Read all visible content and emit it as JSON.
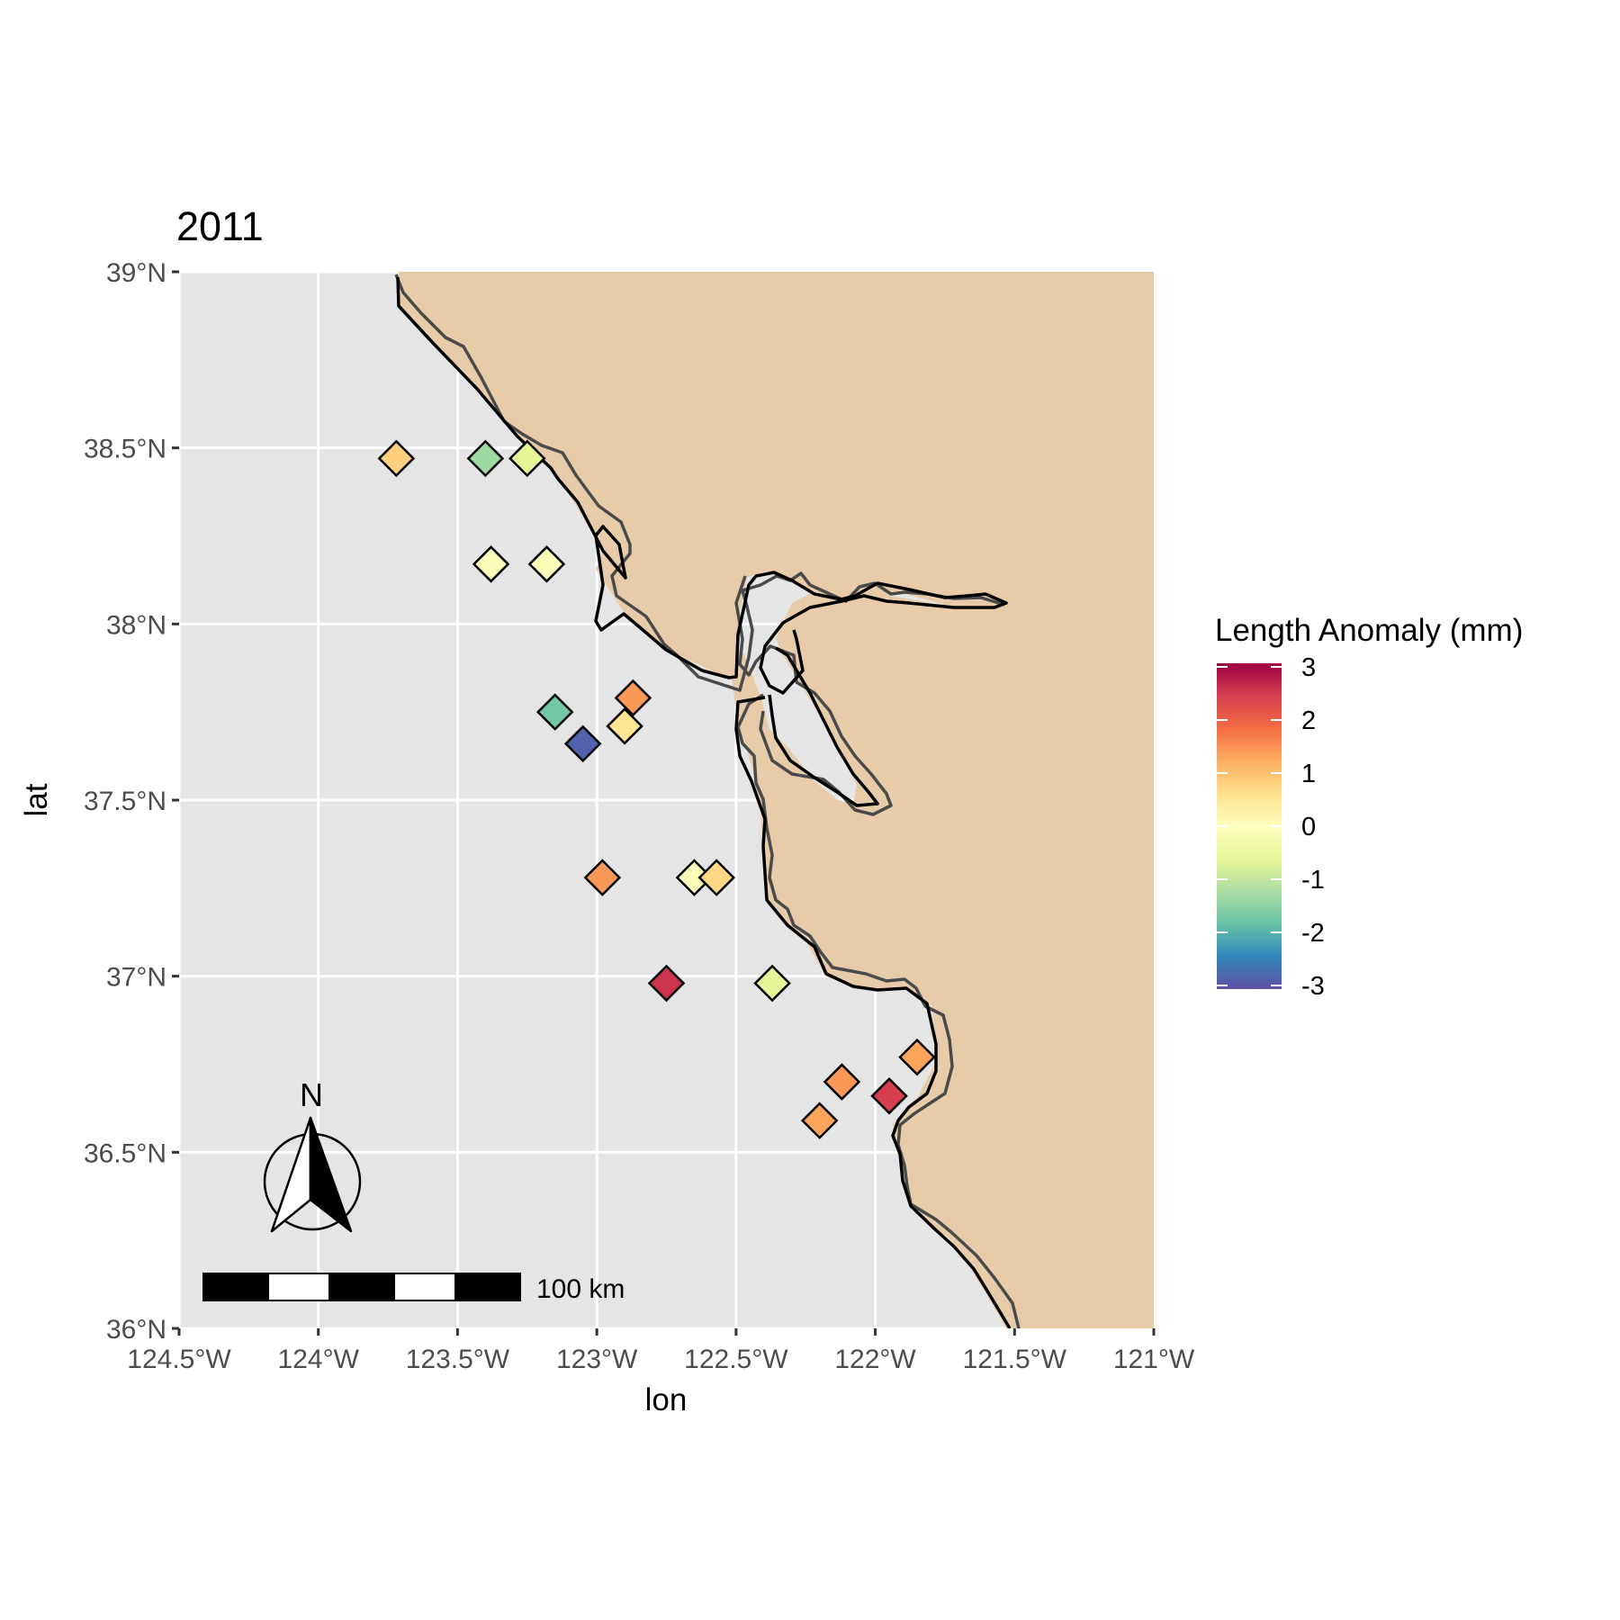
{
  "chart_data": {
    "type": "scatter",
    "title": "2011",
    "xlabel": "lon",
    "ylabel": "lat",
    "xlim": [
      -124.5,
      -121.0
    ],
    "ylim": [
      36.0,
      39.0
    ],
    "x_ticks": [
      {
        "value": -124.5,
        "label": "124.5°W"
      },
      {
        "value": -124.0,
        "label": "124°W"
      },
      {
        "value": -123.5,
        "label": "123.5°W"
      },
      {
        "value": -123.0,
        "label": "123°W"
      },
      {
        "value": -122.5,
        "label": "122.5°W"
      },
      {
        "value": -122.0,
        "label": "122°W"
      },
      {
        "value": -121.5,
        "label": "121.5°W"
      },
      {
        "value": -121.0,
        "label": "121°W"
      }
    ],
    "y_ticks": [
      {
        "value": 36.0,
        "label": "36°N"
      },
      {
        "value": 36.5,
        "label": "36.5°N"
      },
      {
        "value": 37.0,
        "label": "37°N"
      },
      {
        "value": 37.5,
        "label": "37.5°N"
      },
      {
        "value": 38.0,
        "label": "38°N"
      },
      {
        "value": 38.5,
        "label": "38.5°N"
      },
      {
        "value": 39.0,
        "label": "39°N"
      }
    ],
    "grid": true,
    "marker": "diamond",
    "points": [
      {
        "lon": -123.72,
        "lat": 38.47,
        "value": 0.8
      },
      {
        "lon": -123.4,
        "lat": 38.47,
        "value": -1.3
      },
      {
        "lon": -123.25,
        "lat": 38.47,
        "value": -0.6
      },
      {
        "lon": -123.38,
        "lat": 38.17,
        "value": -0.1
      },
      {
        "lon": -123.18,
        "lat": 38.17,
        "value": -0.1
      },
      {
        "lon": -123.15,
        "lat": 37.75,
        "value": -1.7
      },
      {
        "lon": -123.05,
        "lat": 37.66,
        "value": -2.8
      },
      {
        "lon": -122.9,
        "lat": 37.71,
        "value": 0.5
      },
      {
        "lon": -122.87,
        "lat": 37.79,
        "value": 1.4
      },
      {
        "lon": -122.98,
        "lat": 37.28,
        "value": 1.4
      },
      {
        "lon": -122.65,
        "lat": 37.28,
        "value": -0.1
      },
      {
        "lon": -122.57,
        "lat": 37.28,
        "value": 0.7
      },
      {
        "lon": -122.75,
        "lat": 36.98,
        "value": 2.5
      },
      {
        "lon": -122.37,
        "lat": 36.98,
        "value": -0.6
      },
      {
        "lon": -121.85,
        "lat": 36.77,
        "value": 1.3
      },
      {
        "lon": -122.12,
        "lat": 36.7,
        "value": 1.4
      },
      {
        "lon": -121.95,
        "lat": 36.66,
        "value": 2.4
      },
      {
        "lon": -122.2,
        "lat": 36.59,
        "value": 1.3
      }
    ],
    "colorbar": {
      "title": "Length Anomaly (mm)",
      "min": -3,
      "max": 3,
      "tick_values": [
        3,
        2,
        1,
        0,
        -1,
        -2,
        -3
      ],
      "tick_labels": [
        "3",
        "2",
        "1",
        "0",
        "-1",
        "-2",
        "-3"
      ],
      "palette": [
        "#9e0142",
        "#d53e4f",
        "#f46d43",
        "#fdae61",
        "#fee08b",
        "#ffffbf",
        "#e6f598",
        "#abdda4",
        "#66c2a5",
        "#3288bd",
        "#5e4fa2"
      ]
    },
    "legend_position": "right",
    "colors": {
      "panel": "#e5e5e5",
      "land": "#e8ccaa",
      "grid": "#ffffff",
      "coast_outline": "#000000",
      "coast_shadow": "#4a4a4a"
    },
    "scale_bar": {
      "label": "100 km"
    },
    "north_arrow": {
      "label": "N"
    }
  }
}
